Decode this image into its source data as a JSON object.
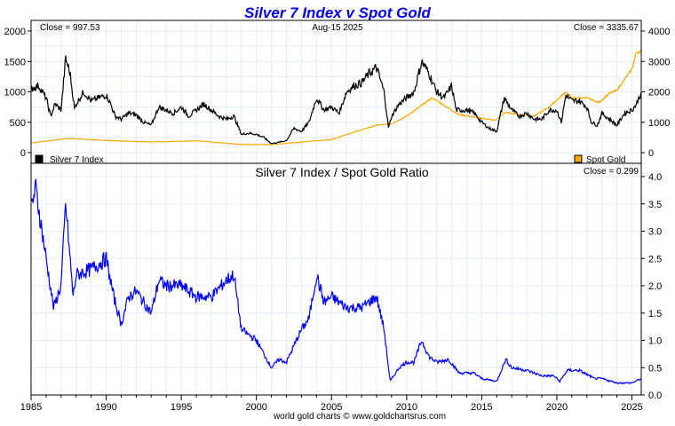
{
  "chart_data": [
    {
      "type": "line",
      "title": "Silver 7 Index v Spot Gold",
      "date_label": "Aug-15  2025",
      "left_close": "Close = 997.53",
      "right_close": "Close = 3335.67",
      "xlim": [
        1985,
        2025.62
      ],
      "ylim_left": [
        0,
        2000
      ],
      "ylim_right": [
        0,
        4000
      ],
      "left_ticks": [
        "0",
        "500",
        "1000",
        "1500",
        "2000"
      ],
      "right_ticks": [
        "0",
        "1000",
        "2000",
        "3000",
        "4000"
      ],
      "grid": true,
      "legend": [
        {
          "name": "Silver 7 Index",
          "placement": "bottom-left"
        },
        {
          "name": "Spot Gold",
          "placement": "bottom-right"
        }
      ],
      "series": [
        {
          "name": "Silver 7 Index",
          "axis": "left",
          "color": "#000000",
          "x": [
            1985,
            1985.5,
            1986,
            1986.3,
            1986.6,
            1987,
            1987.3,
            1987.6,
            1987.9,
            1988,
            1988.5,
            1989,
            1989.5,
            1990,
            1990.3,
            1990.6,
            1991,
            1991.5,
            1992,
            1992.5,
            1993,
            1993.5,
            1994,
            1994.5,
            1995,
            1995.5,
            1996,
            1996.5,
            1997,
            1997.5,
            1998,
            1998.5,
            1999,
            1999.5,
            2000,
            2000.5,
            2001,
            2001.5,
            2002,
            2002.5,
            2003,
            2003.5,
            2004,
            2004.5,
            2005,
            2005.5,
            2006,
            2006.5,
            2007,
            2007.5,
            2008,
            2008.5,
            2008.8,
            2009,
            2009.5,
            2010,
            2010.5,
            2011,
            2011.5,
            2012,
            2012.5,
            2013,
            2013.3,
            2014,
            2014.5,
            2015,
            2015.5,
            2016,
            2016.5,
            2017,
            2017.5,
            2018,
            2018.5,
            2019,
            2019.5,
            2020,
            2020.3,
            2020.6,
            2021,
            2021.5,
            2022,
            2022.3,
            2022.7,
            2023,
            2023.5,
            2024,
            2024.5,
            2025,
            2025.3,
            2025.62
          ],
          "y": [
            1050,
            1100,
            900,
            600,
            800,
            700,
            1550,
            1300,
            700,
            800,
            1000,
            850,
            900,
            950,
            800,
            600,
            550,
            650,
            620,
            500,
            450,
            750,
            700,
            650,
            750,
            600,
            700,
            800,
            700,
            600,
            550,
            600,
            300,
            320,
            300,
            250,
            150,
            170,
            200,
            400,
            350,
            500,
            900,
            700,
            750,
            650,
            1000,
            1100,
            1150,
            1300,
            1400,
            1000,
            400,
            600,
            800,
            900,
            1000,
            1500,
            1300,
            1000,
            900,
            1100,
            700,
            700,
            650,
            500,
            400,
            350,
            900,
            700,
            600,
            650,
            550,
            550,
            700,
            700,
            500,
            950,
            850,
            850,
            750,
            500,
            450,
            650,
            550,
            450,
            650,
            700,
            800,
            997.53
          ]
        },
        {
          "name": "Spot Gold",
          "axis": "right",
          "color": "#f5a800",
          "x": [
            1985,
            1987.5,
            1990,
            1993,
            1996,
            1999,
            2001,
            2003,
            2005,
            2006,
            2008,
            2009,
            2010,
            2011.7,
            2013,
            2013.5,
            2015.9,
            2016.5,
            2018.5,
            2019.5,
            2020.6,
            2021,
            2022,
            2022.8,
            2023.5,
            2024,
            2024.5,
            2025,
            2025.3,
            2025.62
          ],
          "y": [
            320,
            470,
            400,
            350,
            390,
            270,
            265,
            350,
            430,
            600,
            900,
            950,
            1200,
            1800,
            1400,
            1250,
            1060,
            1320,
            1200,
            1500,
            2000,
            1800,
            1800,
            1650,
            1950,
            2050,
            2400,
            2750,
            3300,
            3335.67
          ]
        }
      ]
    },
    {
      "type": "line",
      "title": "Silver 7 Index  /  Spot Gold Ratio",
      "close": "Close = 0.299",
      "xlim": [
        1985,
        2025.62
      ],
      "ylim": [
        0,
        4.0
      ],
      "y_ticks": [
        "0.0",
        "0.5",
        "1.0",
        "1.5",
        "2.0",
        "2.5",
        "3.0",
        "3.5",
        "4.0"
      ],
      "x_ticks": [
        "1985",
        "1990",
        "1995",
        "2000",
        "2005",
        "2010",
        "2015",
        "2020",
        "2025"
      ],
      "grid": true,
      "series": [
        {
          "name": "Ratio",
          "color": "#0000ff",
          "x": [
            1985,
            1985.3,
            1986,
            1986.5,
            1987,
            1987.3,
            1987.8,
            1988,
            1989,
            1990,
            1990.5,
            1991,
            1991.5,
            1992,
            1993,
            1993.5,
            1994,
            1995,
            1996,
            1997,
            1998,
            1998.5,
            1999,
            2000,
            2001,
            2001.5,
            2002,
            2003,
            2003.5,
            2004,
            2004.5,
            2005,
            2006,
            2007,
            2008,
            2008.5,
            2008.9,
            2009.5,
            2010,
            2010.5,
            2011,
            2011.5,
            2012,
            2012.8,
            2013.5,
            2014.5,
            2015,
            2016,
            2016.6,
            2017,
            2018,
            2019,
            2019.8,
            2020.2,
            2020.7,
            2021.5,
            2022.5,
            2023,
            2024,
            2025,
            2025.62
          ],
          "y": [
            3.4,
            3.8,
            2.5,
            1.6,
            2.0,
            3.5,
            1.8,
            2.2,
            2.3,
            2.5,
            1.8,
            1.3,
            1.8,
            1.9,
            1.5,
            2.1,
            2.0,
            2.0,
            1.8,
            1.8,
            2.1,
            2.2,
            1.2,
            1.0,
            0.5,
            0.65,
            0.6,
            1.2,
            1.4,
            2.2,
            1.7,
            1.8,
            1.6,
            1.6,
            1.8,
            1.2,
            0.25,
            0.5,
            0.6,
            0.6,
            1.0,
            0.7,
            0.6,
            0.65,
            0.4,
            0.4,
            0.3,
            0.25,
            0.65,
            0.5,
            0.45,
            0.35,
            0.35,
            0.25,
            0.45,
            0.45,
            0.3,
            0.3,
            0.22,
            0.22,
            0.299
          ]
        }
      ]
    }
  ],
  "footer": "world gold charts © www.goldchartsrus.com"
}
